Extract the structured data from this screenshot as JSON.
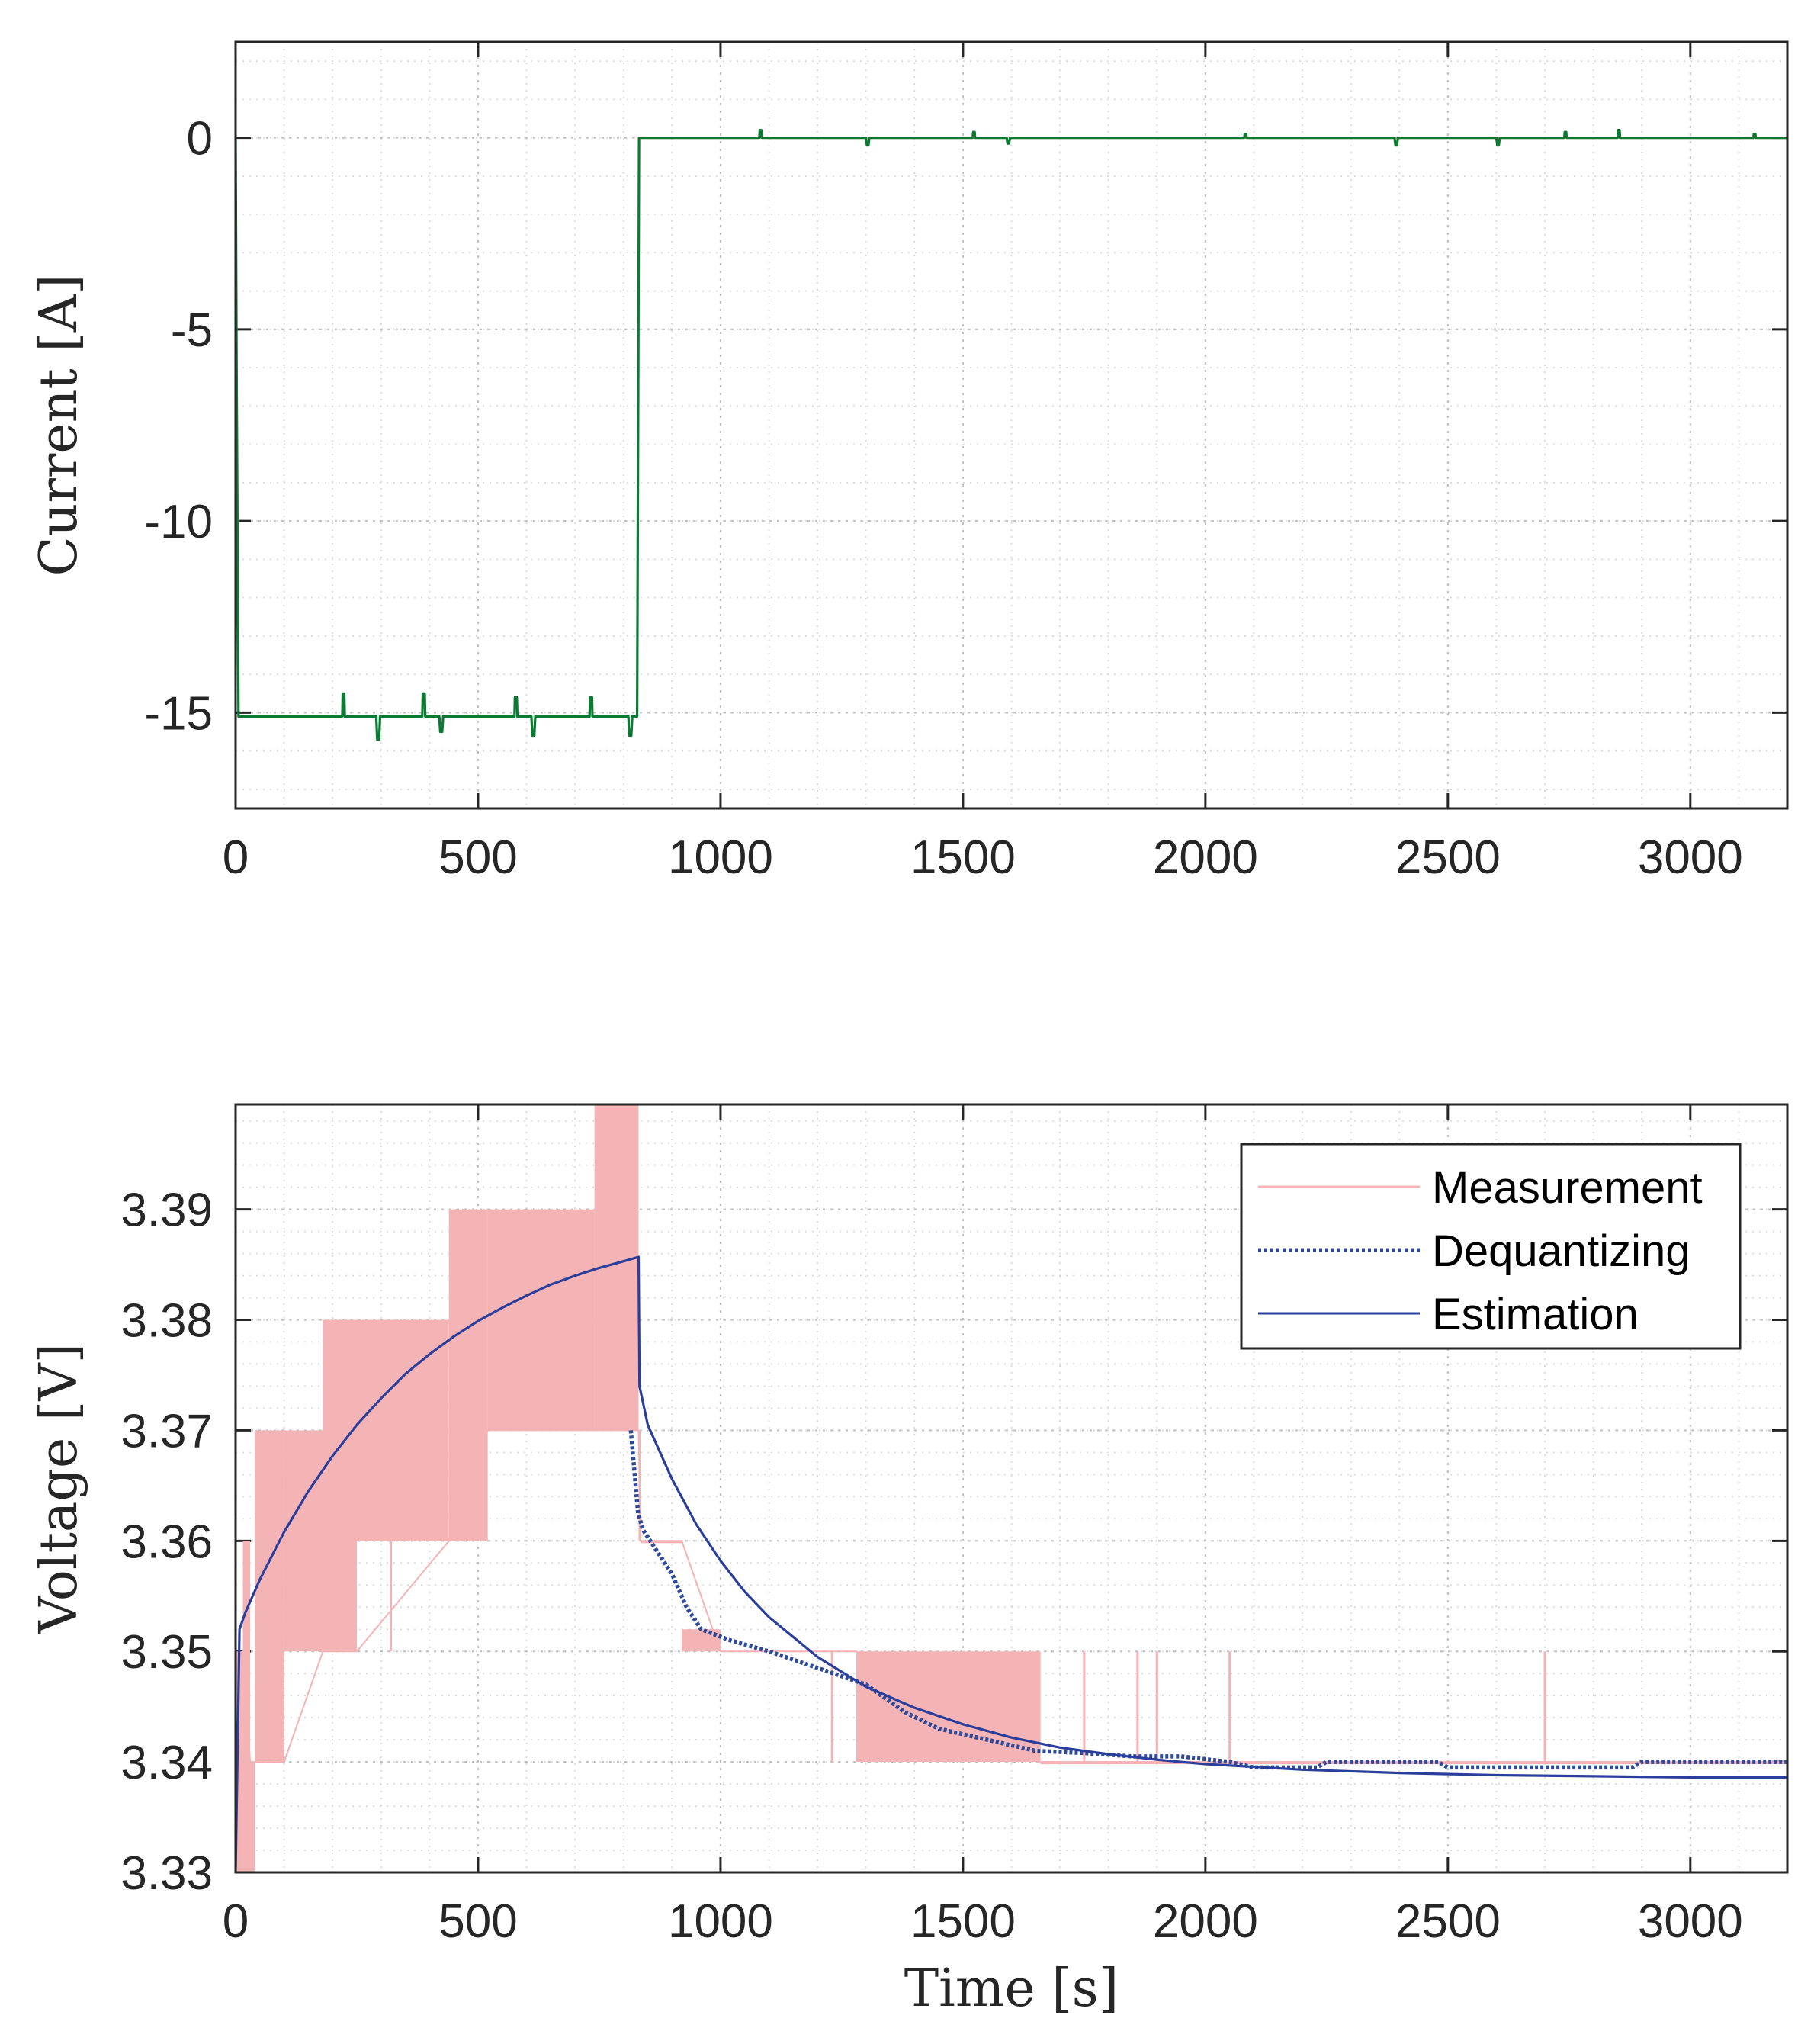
{
  "chart_data": [
    {
      "type": "line",
      "title": "",
      "xlabel": "",
      "ylabel": "Current [A]",
      "xlim": [
        0,
        3200
      ],
      "ylim": [
        -17.5,
        2.5
      ],
      "xticks": [
        0,
        500,
        1000,
        1500,
        2000,
        2500,
        3000
      ],
      "yticks": [
        0,
        -5,
        -10,
        -15
      ],
      "xtick_labels": [
        "0",
        "500",
        "1000",
        "1500",
        "2000",
        "2500",
        "3000"
      ],
      "ytick_labels": [
        "0",
        "-5",
        "-10",
        "-15"
      ],
      "grid": true,
      "minor_grid": true,
      "series": [
        {
          "color": "#0c7a33",
          "style": "solid",
          "x": [
            0,
            2,
            6,
            10,
            220,
            221,
            224,
            225,
            290,
            292,
            296,
            298,
            385,
            386,
            390,
            391,
            420,
            422,
            426,
            428,
            575,
            576,
            580,
            581,
            610,
            612,
            616,
            618,
            730,
            731,
            735,
            736,
            810,
            812,
            816,
            818,
            828,
            832,
            834,
            1080,
            1081,
            1084,
            1085,
            1300,
            1302,
            1305,
            1307,
            1520,
            1521,
            1524,
            1525,
            1590,
            1592,
            1595,
            1597,
            2080,
            2081,
            2084,
            2085,
            2390,
            2392,
            2395,
            2397,
            2600,
            2602,
            2605,
            2607,
            2740,
            2741,
            2744,
            2745,
            2850,
            2851,
            2854,
            2855,
            3130,
            3131,
            3134,
            3135,
            3200
          ],
          "y": [
            0,
            -6,
            -15.1,
            -15.1,
            -15.1,
            -14.5,
            -14.5,
            -15.1,
            -15.1,
            -15.7,
            -15.7,
            -15.1,
            -15.1,
            -14.5,
            -14.5,
            -15.1,
            -15.1,
            -15.5,
            -15.5,
            -15.1,
            -15.1,
            -14.6,
            -14.6,
            -15.1,
            -15.1,
            -15.6,
            -15.6,
            -15.1,
            -15.1,
            -14.6,
            -14.6,
            -15.1,
            -15.1,
            -15.6,
            -15.6,
            -15.1,
            -15.1,
            0,
            0,
            0,
            0.2,
            0.2,
            0,
            0,
            -0.2,
            -0.2,
            0,
            0,
            0.15,
            0.15,
            0,
            0,
            -0.15,
            -0.15,
            0,
            0,
            0.1,
            0.1,
            0,
            0,
            -0.2,
            -0.2,
            0,
            0,
            -0.2,
            -0.2,
            0,
            0,
            0.15,
            0.15,
            0,
            0,
            0.2,
            0.2,
            0,
            0,
            0.1,
            0.1,
            0,
            0
          ]
        }
      ]
    },
    {
      "type": "line",
      "title": "",
      "xlabel": "Time [s]",
      "ylabel": "Voltage [V]",
      "xlim": [
        0,
        3200
      ],
      "ylim": [
        3.33,
        3.3995
      ],
      "xticks": [
        0,
        500,
        1000,
        1500,
        2000,
        2500,
        3000
      ],
      "yticks": [
        3.33,
        3.34,
        3.35,
        3.36,
        3.37,
        3.38,
        3.39
      ],
      "xtick_labels": [
        "0",
        "500",
        "1000",
        "1500",
        "2000",
        "2500",
        "3000"
      ],
      "ytick_labels": [
        "3.33",
        "3.34",
        "3.35",
        "3.36",
        "3.37",
        "3.38",
        "3.39"
      ],
      "grid": true,
      "minor_grid": true,
      "legend_location": "top-right",
      "series": [
        {
          "name": "Measurement",
          "color": "#f4b3b5",
          "style": "solid",
          "bands": [
            {
              "x0": 0,
              "x1": 15,
              "y0": 3.33,
              "y1": 3.35
            },
            {
              "x0": 15,
              "x1": 30,
              "y0": 3.33,
              "y1": 3.36
            },
            {
              "x0": 30,
              "x1": 40,
              "y0": 3.33,
              "y1": 3.34
            },
            {
              "x0": 40,
              "x1": 100,
              "y0": 3.34,
              "y1": 3.37
            },
            {
              "x0": 100,
              "x1": 180,
              "y0": 3.35,
              "y1": 3.37
            },
            {
              "x0": 180,
              "x1": 250,
              "y0": 3.35,
              "y1": 3.38
            },
            {
              "x0": 250,
              "x1": 440,
              "y0": 3.36,
              "y1": 3.38
            },
            {
              "x0": 440,
              "x1": 520,
              "y0": 3.36,
              "y1": 3.39
            },
            {
              "x0": 520,
              "x1": 600,
              "y0": 3.37,
              "y1": 3.39
            },
            {
              "x0": 600,
              "x1": 740,
              "y0": 3.37,
              "y1": 3.39
            },
            {
              "x0": 740,
              "x1": 831,
              "y0": 3.37,
              "y1": 3.3995
            },
            {
              "x0": 831,
              "x1": 835,
              "y0": 3.36,
              "y1": 3.37
            },
            {
              "x0": 835,
              "x1": 920,
              "y0": 3.36,
              "y1": 3.36
            },
            {
              "x0": 920,
              "x1": 1000,
              "y0": 3.35,
              "y1": 3.352
            },
            {
              "x0": 1280,
              "x1": 1660,
              "y0": 3.34,
              "y1": 3.35
            },
            {
              "x0": 1660,
              "x1": 3200,
              "y0": 3.34,
              "y1": 3.34
            }
          ],
          "x": [
            0,
            15,
            30,
            100,
            180,
            250,
            440,
            520,
            740,
            831,
            835,
            920,
            1000,
            1280,
            1660,
            3200
          ],
          "y": [
            3.33,
            3.35,
            3.34,
            3.34,
            3.35,
            3.35,
            3.36,
            3.37,
            3.37,
            3.37,
            3.36,
            3.36,
            3.35,
            3.35,
            3.34,
            3.34
          ],
          "spikes": [
            {
              "x": 320,
              "y0": 3.35,
              "y1": 3.36
            },
            {
              "x": 1230,
              "y0": 3.34,
              "y1": 3.35
            },
            {
              "x": 1750,
              "y0": 3.34,
              "y1": 3.35
            },
            {
              "x": 1860,
              "y0": 3.34,
              "y1": 3.35
            },
            {
              "x": 1900,
              "y0": 3.34,
              "y1": 3.35
            },
            {
              "x": 2050,
              "y0": 3.34,
              "y1": 3.35
            },
            {
              "x": 2700,
              "y0": 3.34,
              "y1": 3.35
            }
          ]
        },
        {
          "name": "Dequantizing",
          "color": "#2e4a9a",
          "style": "dotted",
          "x": [
            815,
            830,
            840,
            870,
            900,
            930,
            960,
            990,
            1020,
            1100,
            1200,
            1300,
            1380,
            1450,
            1550,
            1650,
            1750,
            1850,
            1950,
            2050,
            2100,
            2230,
            2250,
            2480,
            2500,
            2880,
            2900,
            3200
          ],
          "y": [
            3.37,
            3.3625,
            3.361,
            3.359,
            3.357,
            3.354,
            3.352,
            3.3515,
            3.351,
            3.35,
            3.3485,
            3.347,
            3.3445,
            3.343,
            3.342,
            3.341,
            3.3408,
            3.3405,
            3.3405,
            3.34,
            3.3395,
            3.3395,
            3.34,
            3.34,
            3.3395,
            3.3395,
            3.34,
            3.34
          ]
        },
        {
          "name": "Estimation",
          "color": "#2a3f9c",
          "style": "solid",
          "x": [
            0,
            8,
            20,
            50,
            100,
            150,
            200,
            250,
            300,
            350,
            400,
            450,
            500,
            550,
            600,
            650,
            700,
            750,
            800,
            831,
            833,
            850,
            900,
            950,
            1000,
            1050,
            1100,
            1200,
            1300,
            1400,
            1500,
            1600,
            1700,
            1800,
            1900,
            2000,
            2200,
            2400,
            2600,
            2800,
            3000,
            3200
          ],
          "y": [
            3.33,
            3.352,
            3.3535,
            3.3565,
            3.3608,
            3.3645,
            3.3677,
            3.3705,
            3.3729,
            3.3751,
            3.3769,
            3.3785,
            3.3799,
            3.3811,
            3.3822,
            3.3832,
            3.384,
            3.3847,
            3.3853,
            3.3857,
            3.374,
            3.3705,
            3.3656,
            3.3615,
            3.3582,
            3.3554,
            3.3531,
            3.3495,
            3.3468,
            3.3449,
            3.3434,
            3.3422,
            3.3413,
            3.3407,
            3.3402,
            3.3398,
            3.3393,
            3.339,
            3.3388,
            3.3387,
            3.3386,
            3.3386
          ]
        }
      ]
    }
  ]
}
